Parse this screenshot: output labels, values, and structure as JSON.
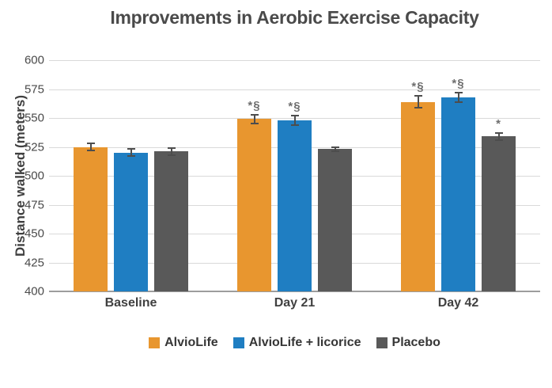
{
  "chart_data": {
    "type": "bar",
    "title": "Improvements in Aerobic Exercise Capacity",
    "categories": [
      "Baseline",
      "Day 21",
      "Day 42"
    ],
    "series": [
      {
        "name": "AlvioLife",
        "color": "#E8962F",
        "values": [
          525,
          549,
          564
        ],
        "errors": [
          3,
          4,
          5
        ],
        "annotations": [
          "",
          "*§",
          "*§"
        ]
      },
      {
        "name": "AlvioLife + licorice",
        "color": "#1F7EC2",
        "values": [
          520,
          548,
          568
        ],
        "errors": [
          3,
          4,
          4
        ],
        "annotations": [
          "",
          "*§",
          "*§"
        ]
      },
      {
        "name": "Placebo",
        "color": "#595959",
        "values": [
          521,
          523,
          534
        ],
        "errors": [
          3,
          2,
          3
        ],
        "annotations": [
          "",
          "",
          "*"
        ]
      }
    ],
    "xlabel": "",
    "ylabel": "Distance walked (meters)",
    "ylim": [
      400,
      600
    ],
    "ytick_step": 25,
    "yticks": [
      600,
      575,
      550,
      525,
      500,
      475,
      450,
      425,
      400
    ],
    "grid": true,
    "legend_position": "bottom"
  },
  "style": {
    "gridline_color": "#d9d9d9",
    "axis_line_color": "#9d9d9d",
    "error_bar_color": "#4d4d4d",
    "annotation_color": "#6e6e6e",
    "title_color": "#4a4a4a",
    "label_color": "#404040"
  }
}
